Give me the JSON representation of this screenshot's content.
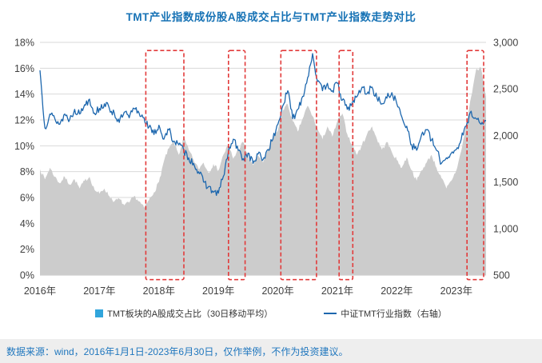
{
  "title": "TMT产业指数成份股A股成交占比与TMT产业指数走势对比",
  "footer": "数据来源：wind，2016年1月1日-2023年6月30日，仅作举例，不作为投资建议。",
  "colors": {
    "title": "#1672b5",
    "line": "#1d67ae",
    "area": "#cccccc",
    "legend_area_swatch": "#31a5dc",
    "highlight": "#e23a3a",
    "gridline": "#dadada",
    "baseline": "#c0c0c0",
    "axis_text": "#404040",
    "footer_bg": "#eeeeee",
    "footer_text": "#2077be"
  },
  "chart_data": {
    "type": "area+line",
    "title": "TMT产业指数成份股A股成交占比与TMT产业指数走势对比",
    "grid": "horizontal",
    "legend_position": "bottom",
    "x_start": 2016.0,
    "x_step_years": 0.0833333,
    "x_range": [
      2016.0,
      2023.5
    ],
    "x_ticks": {
      "years": [
        2016,
        2017,
        2018,
        2019,
        2020,
        2021,
        2022,
        2023
      ],
      "labels": [
        "2016年",
        "2017年",
        "2018年",
        "2019年",
        "2020年",
        "2021年",
        "2022年",
        "2023年"
      ]
    },
    "left_axis": {
      "min": 0,
      "max": 18,
      "unit": "%",
      "tick_values": [
        0,
        2,
        4,
        6,
        8,
        10,
        12,
        14,
        16,
        18
      ],
      "tick_labels": [
        "0%",
        "2%",
        "4%",
        "6%",
        "8%",
        "10%",
        "12%",
        "14%",
        "16%",
        "18%"
      ]
    },
    "right_axis": {
      "min": 500,
      "max": 3000,
      "tick_values": [
        500,
        1000,
        1500,
        2000,
        2500,
        3000
      ],
      "tick_labels": [
        "500",
        "1,000",
        "1,500",
        "2,000",
        "2,500",
        "3,000"
      ]
    },
    "series": [
      {
        "name": "TMT板块的A股成交占比（30日移动平均）",
        "type": "area",
        "axis": "left",
        "unit": "%",
        "values": [
          8.2,
          7.4,
          8.3,
          7.6,
          7.1,
          7.6,
          7.0,
          7.4,
          6.7,
          7.3,
          7.6,
          6.6,
          6.3,
          6.7,
          6.1,
          5.7,
          5.9,
          5.4,
          5.6,
          6.1,
          5.7,
          5.2,
          5.8,
          6.4,
          7.2,
          8.8,
          9.8,
          10.3,
          9.3,
          10.6,
          9.7,
          8.9,
          8.2,
          8.7,
          7.9,
          8.6,
          8.1,
          9.3,
          10.1,
          9.0,
          9.7,
          10.3,
          9.1,
          8.5,
          9.3,
          8.7,
          9.7,
          10.6,
          11.2,
          12.8,
          13.2,
          11.9,
          11.1,
          12.1,
          13.1,
          12.3,
          11.3,
          10.5,
          11.5,
          10.7,
          11.9,
          12.5,
          10.9,
          10.1,
          9.3,
          10.1,
          10.9,
          11.5,
          10.5,
          9.7,
          10.3,
          9.5,
          8.9,
          8.3,
          9.1,
          8.1,
          7.3,
          8.1,
          8.7,
          9.3,
          8.3,
          7.5,
          6.7,
          7.3,
          8.1,
          9.6,
          11.6,
          13.8,
          15.9,
          16.0,
          13.8
        ]
      },
      {
        "name": "中证TMT行业指数（右轴）",
        "type": "line",
        "axis": "right",
        "values": [
          2700,
          2080,
          2230,
          2180,
          2120,
          2230,
          2170,
          2280,
          2230,
          2330,
          2390,
          2240,
          2290,
          2340,
          2290,
          2240,
          2140,
          2250,
          2190,
          2290,
          2240,
          2190,
          2090,
          2010,
          2110,
          1960,
          2060,
          1940,
          1900,
          1840,
          1760,
          1700,
          1610,
          1500,
          1450,
          1390,
          1380,
          1560,
          1820,
          1960,
          1840,
          1750,
          1810,
          1700,
          1800,
          1740,
          1850,
          1960,
          2120,
          2320,
          2480,
          2180,
          2280,
          2420,
          2620,
          2880,
          2580,
          2480,
          2560,
          2480,
          2560,
          2380,
          2280,
          2350,
          2420,
          2520,
          2450,
          2520,
          2400,
          2340,
          2400,
          2460,
          2340,
          2200,
          2100,
          1900,
          1840,
          2010,
          2060,
          1950,
          1840,
          1700,
          1760,
          1810,
          1850,
          1960,
          2100,
          2260,
          2180,
          2120,
          2160
        ]
      }
    ],
    "highlight_boxes": [
      {
        "x_start": 2017.78,
        "x_end": 2018.42
      },
      {
        "x_start": 2019.17,
        "x_end": 2019.45
      },
      {
        "x_start": 2020.05,
        "x_end": 2020.65
      },
      {
        "x_start": 2021.03,
        "x_end": 2021.26
      },
      {
        "x_start": 2023.18,
        "x_end": 2023.46
      }
    ]
  }
}
